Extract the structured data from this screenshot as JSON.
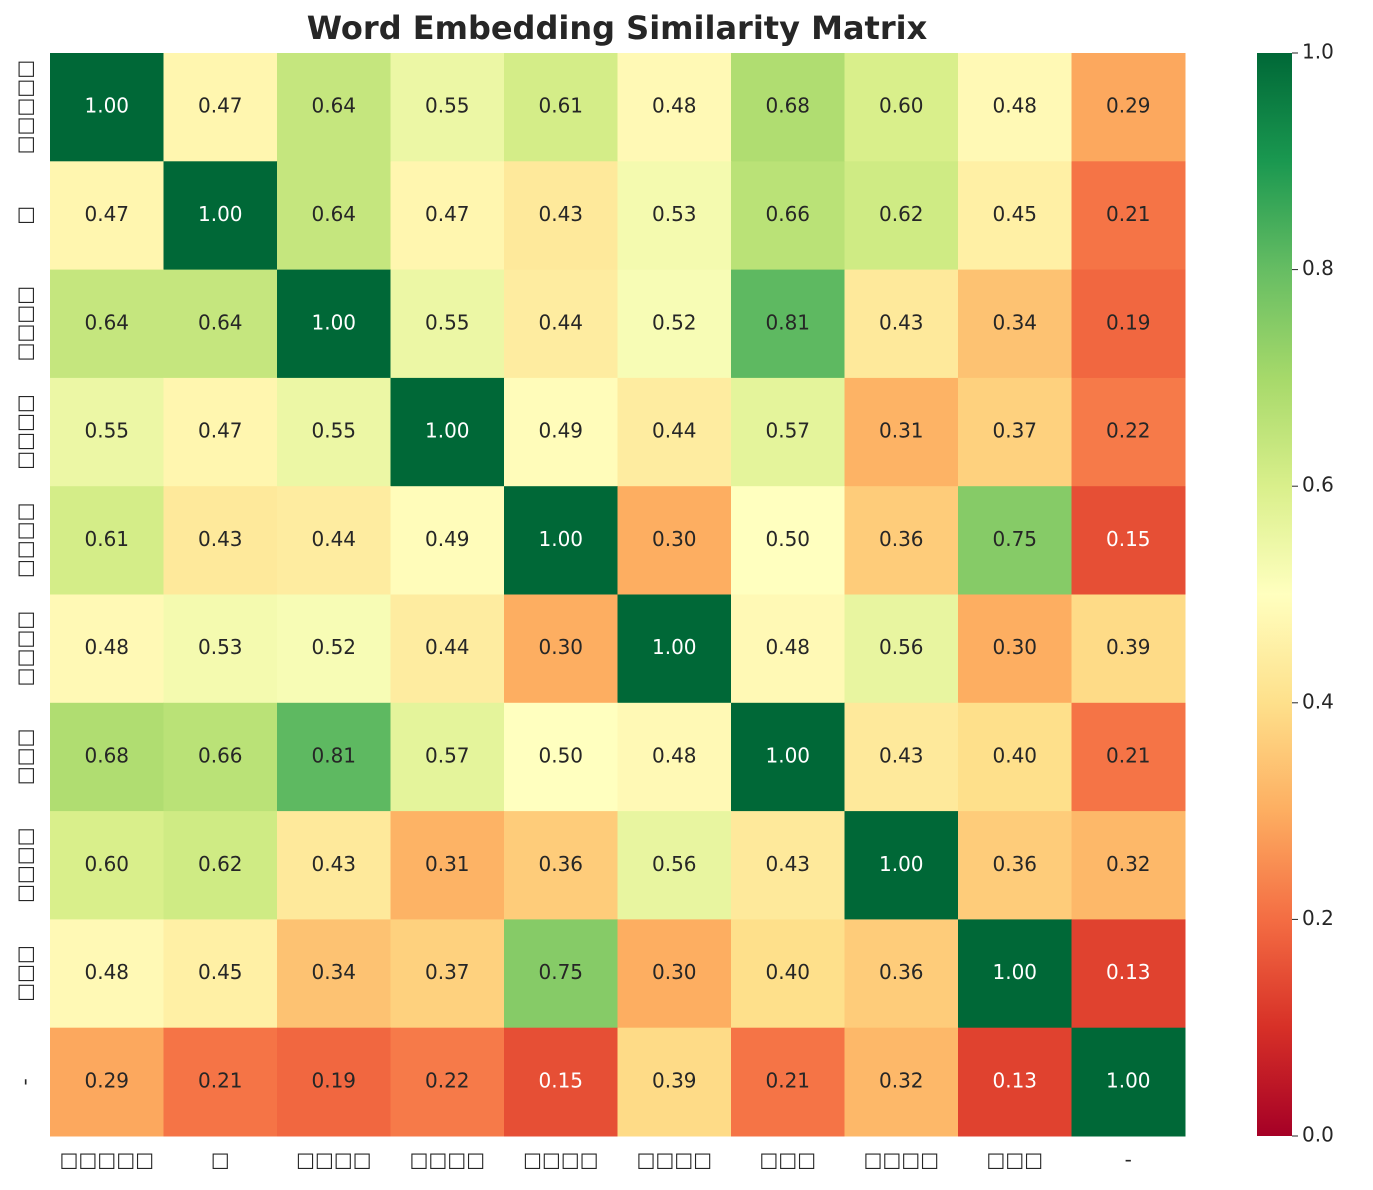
{
  "chart_data": {
    "type": "heatmap",
    "title": "Word Embedding Similarity Matrix",
    "categories": [
      "□□□□□",
      "□",
      "□□□□",
      "□□□□",
      "□□□□",
      "□□□□",
      "□□□",
      "□□□□",
      "□□□",
      "-"
    ],
    "values": [
      [
        1.0,
        0.47,
        0.64,
        0.55,
        0.61,
        0.48,
        0.68,
        0.6,
        0.48,
        0.29
      ],
      [
        0.47,
        1.0,
        0.64,
        0.47,
        0.43,
        0.53,
        0.66,
        0.62,
        0.45,
        0.21
      ],
      [
        0.64,
        0.64,
        1.0,
        0.55,
        0.44,
        0.52,
        0.81,
        0.43,
        0.34,
        0.19
      ],
      [
        0.55,
        0.47,
        0.55,
        1.0,
        0.49,
        0.44,
        0.57,
        0.31,
        0.37,
        0.22
      ],
      [
        0.61,
        0.43,
        0.44,
        0.49,
        1.0,
        0.3,
        0.5,
        0.36,
        0.75,
        0.15
      ],
      [
        0.48,
        0.53,
        0.52,
        0.44,
        0.3,
        1.0,
        0.48,
        0.56,
        0.3,
        0.39
      ],
      [
        0.68,
        0.66,
        0.81,
        0.57,
        0.5,
        0.48,
        1.0,
        0.43,
        0.4,
        0.21
      ],
      [
        0.6,
        0.62,
        0.43,
        0.31,
        0.36,
        0.56,
        0.43,
        1.0,
        0.36,
        0.32
      ],
      [
        0.48,
        0.45,
        0.34,
        0.37,
        0.75,
        0.3,
        0.4,
        0.36,
        1.0,
        0.13
      ],
      [
        0.29,
        0.21,
        0.19,
        0.22,
        0.15,
        0.39,
        0.21,
        0.32,
        0.13,
        1.0
      ]
    ],
    "value_labels": [
      [
        "1.00",
        "0.47",
        "0.64",
        "0.55",
        "0.61",
        "0.48",
        "0.68",
        "0.60",
        "0.48",
        "0.29"
      ],
      [
        "0.47",
        "1.00",
        "0.64",
        "0.47",
        "0.43",
        "0.53",
        "0.66",
        "0.62",
        "0.45",
        "0.21"
      ],
      [
        "0.64",
        "0.64",
        "1.00",
        "0.55",
        "0.44",
        "0.52",
        "0.81",
        "0.43",
        "0.34",
        "0.19"
      ],
      [
        "0.55",
        "0.47",
        "0.55",
        "1.00",
        "0.49",
        "0.44",
        "0.57",
        "0.31",
        "0.37",
        "0.22"
      ],
      [
        "0.61",
        "0.43",
        "0.44",
        "0.49",
        "1.00",
        "0.30",
        "0.50",
        "0.36",
        "0.75",
        "0.15"
      ],
      [
        "0.48",
        "0.53",
        "0.52",
        "0.44",
        "0.30",
        "1.00",
        "0.48",
        "0.56",
        "0.30",
        "0.39"
      ],
      [
        "0.68",
        "0.66",
        "0.81",
        "0.57",
        "0.50",
        "0.48",
        "1.00",
        "0.43",
        "0.40",
        "0.21"
      ],
      [
        "0.60",
        "0.62",
        "0.43",
        "0.31",
        "0.36",
        "0.56",
        "0.43",
        "1.00",
        "0.36",
        "0.32"
      ],
      [
        "0.48",
        "0.45",
        "0.34",
        "0.37",
        "0.75",
        "0.30",
        "0.40",
        "0.36",
        "1.00",
        "0.13"
      ],
      [
        "0.29",
        "0.21",
        "0.19",
        "0.22",
        "0.15",
        "0.39",
        "0.21",
        "0.32",
        "0.13",
        "1.00"
      ]
    ],
    "colormap": "RdYlGn",
    "clim": [
      0,
      1
    ],
    "cticks": [
      {
        "value": 0,
        "label": "0.0"
      },
      0.2,
      0.4,
      0.6,
      0.8,
      {
        "value": 1,
        "label": "1.0"
      }
    ]
  }
}
